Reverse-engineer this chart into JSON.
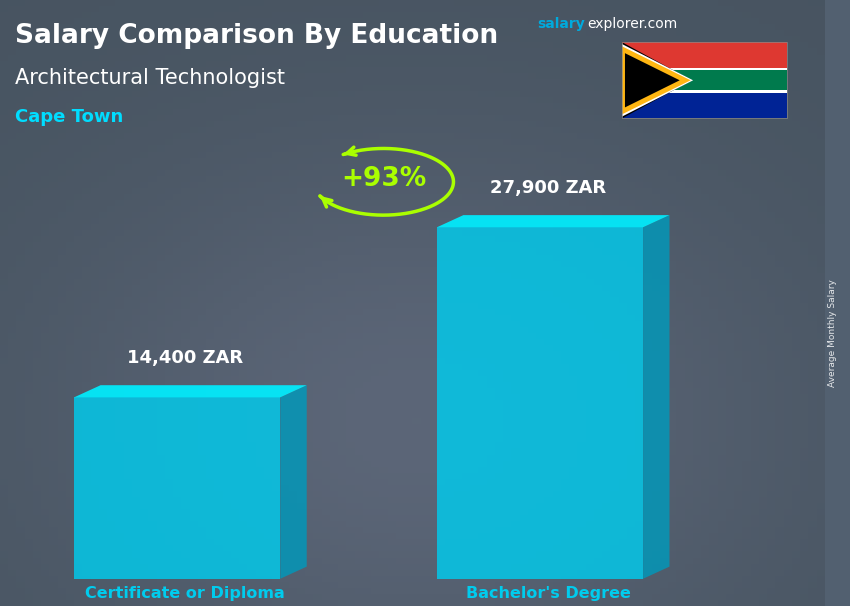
{
  "title_line1": "Salary Comparison By Education",
  "subtitle": "Architectural Technologist",
  "location": "Cape Town",
  "watermark_salary": "salary",
  "watermark_rest": "explorer.com",
  "categories": [
    "Certificate or Diploma",
    "Bachelor's Degree"
  ],
  "values": [
    14400,
    27900
  ],
  "value_labels": [
    "14,400 ZAR",
    "27,900 ZAR"
  ],
  "pct_change": "+93%",
  "bar_face_color": "#00ccee",
  "bar_side_color": "#0099bb",
  "bar_top_color": "#00eeff",
  "bar_alpha": 0.82,
  "bg_color": "#526070",
  "title_color": "#ffffff",
  "subtitle_color": "#ffffff",
  "location_color": "#00ddff",
  "label_color": "#ffffff",
  "category_color": "#00ccee",
  "pct_color": "#aaff00",
  "watermark_salary_color": "#00aadd",
  "watermark_rest_color": "#ffffff",
  "side_label": "Average Monthly Salary",
  "figsize": [
    8.5,
    6.06
  ],
  "dpi": 100
}
